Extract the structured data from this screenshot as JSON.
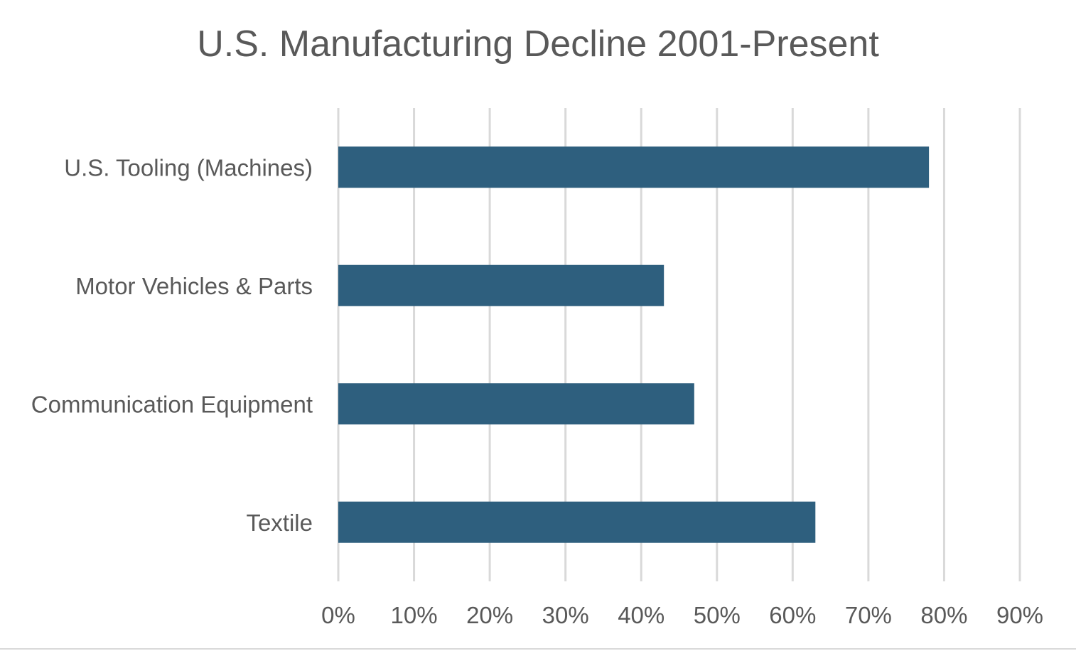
{
  "chart_data": {
    "type": "bar",
    "orientation": "horizontal",
    "title": "U.S. Manufacturing Decline 2001-Present",
    "categories": [
      "U.S. Tooling (Machines)",
      "Motor Vehicles & Parts",
      "Communication Equipment",
      "Textile"
    ],
    "values": [
      78,
      43,
      47,
      63
    ],
    "value_unit": "%",
    "xlim": [
      0,
      90
    ],
    "x_ticks": [
      0,
      10,
      20,
      30,
      40,
      50,
      60,
      70,
      80,
      90
    ],
    "x_tick_labels": [
      "0%",
      "10%",
      "20%",
      "30%",
      "40%",
      "50%",
      "60%",
      "70%",
      "80%",
      "90%"
    ],
    "xlabel": "",
    "ylabel": "",
    "grid": "vertical",
    "legend": "none",
    "bar_color": "#2e5f7e"
  }
}
